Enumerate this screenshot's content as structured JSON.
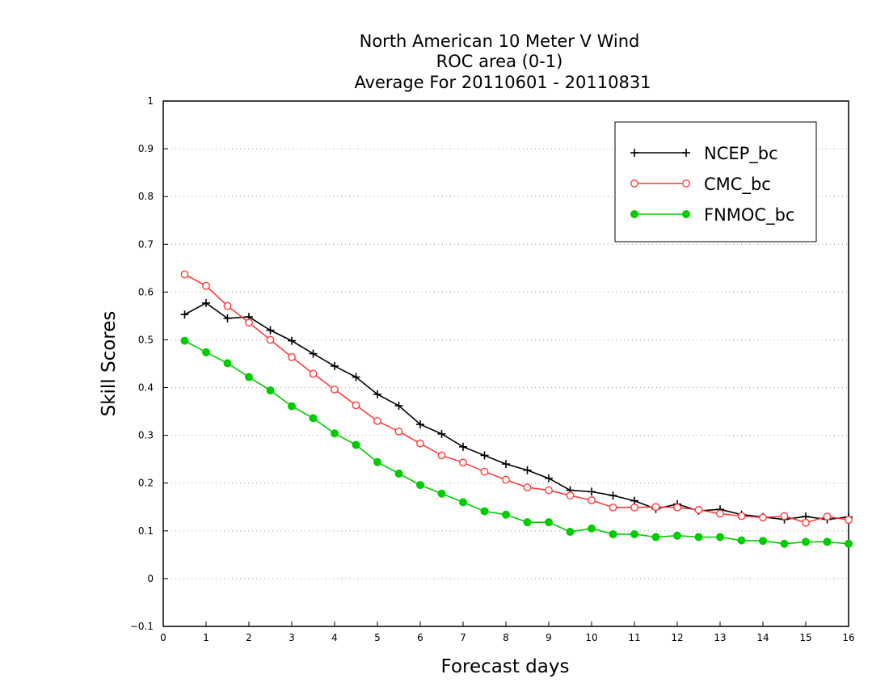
{
  "chart_data": {
    "type": "line",
    "title_lines": [
      "North American 10 Meter V Wind",
      "ROC area (0-1)",
      "Average For 20110601 - 20110831"
    ],
    "xlabel": "Forecast days",
    "ylabel": "Skill Scores",
    "xlim": [
      0,
      16
    ],
    "ylim": [
      -0.1,
      1
    ],
    "x_ticks": [
      0,
      1,
      2,
      3,
      4,
      5,
      6,
      7,
      8,
      9,
      10,
      11,
      12,
      13,
      14,
      15,
      16
    ],
    "x_tick_labels": [
      "0",
      "1",
      "2",
      "3",
      "4",
      "5",
      "6",
      "7",
      "8",
      "9",
      "10",
      "11",
      "12",
      "13",
      "14",
      "15",
      "16"
    ],
    "y_ticks": [
      -0.1,
      0,
      0.1,
      0.2,
      0.3,
      0.4,
      0.5,
      0.6,
      0.7,
      0.8,
      0.9,
      1
    ],
    "y_tick_labels": [
      "−0.1",
      "0",
      "0.1",
      "0.2",
      "0.3",
      "0.4",
      "0.5",
      "0.6",
      "0.7",
      "0.8",
      "0.9",
      "1"
    ],
    "grid": "horizontal dotted",
    "legend_position": "top-right",
    "x": [
      0.5,
      1,
      1.5,
      2,
      2.5,
      3,
      3.5,
      4,
      4.5,
      5,
      5.5,
      6,
      6.5,
      7,
      7.5,
      8,
      8.5,
      9,
      9.5,
      10,
      10.5,
      11,
      11.5,
      12,
      12.5,
      13,
      13.5,
      14,
      14.5,
      15,
      15.5,
      16
    ],
    "series": [
      {
        "name": "NCEP_bc",
        "color": "#000000",
        "marker": "plus",
        "values": [
          0.553,
          0.577,
          0.545,
          0.548,
          0.52,
          0.498,
          0.471,
          0.445,
          0.422,
          0.386,
          0.362,
          0.323,
          0.303,
          0.276,
          0.258,
          0.24,
          0.227,
          0.21,
          0.185,
          0.182,
          0.174,
          0.163,
          0.146,
          0.156,
          0.142,
          0.145,
          0.134,
          0.129,
          0.124,
          0.13,
          0.124,
          0.129
        ]
      },
      {
        "name": "CMC_bc",
        "color": "#ff3a3a",
        "marker": "open-circle",
        "values": [
          0.637,
          0.613,
          0.571,
          0.536,
          0.5,
          0.464,
          0.429,
          0.396,
          0.363,
          0.33,
          0.308,
          0.283,
          0.258,
          0.243,
          0.224,
          0.207,
          0.191,
          0.185,
          0.174,
          0.164,
          0.149,
          0.149,
          0.15,
          0.149,
          0.144,
          0.136,
          0.131,
          0.128,
          0.131,
          0.117,
          0.13,
          0.123
        ]
      },
      {
        "name": "FNMOC_bc",
        "color": "#00cc00",
        "marker": "filled-circle",
        "values": [
          0.498,
          0.474,
          0.451,
          0.422,
          0.394,
          0.361,
          0.336,
          0.304,
          0.28,
          0.244,
          0.22,
          0.196,
          0.178,
          0.16,
          0.141,
          0.134,
          0.118,
          0.118,
          0.098,
          0.105,
          0.093,
          0.093,
          0.087,
          0.09,
          0.087,
          0.087,
          0.08,
          0.079,
          0.073,
          0.077,
          0.077,
          0.073
        ]
      }
    ]
  }
}
